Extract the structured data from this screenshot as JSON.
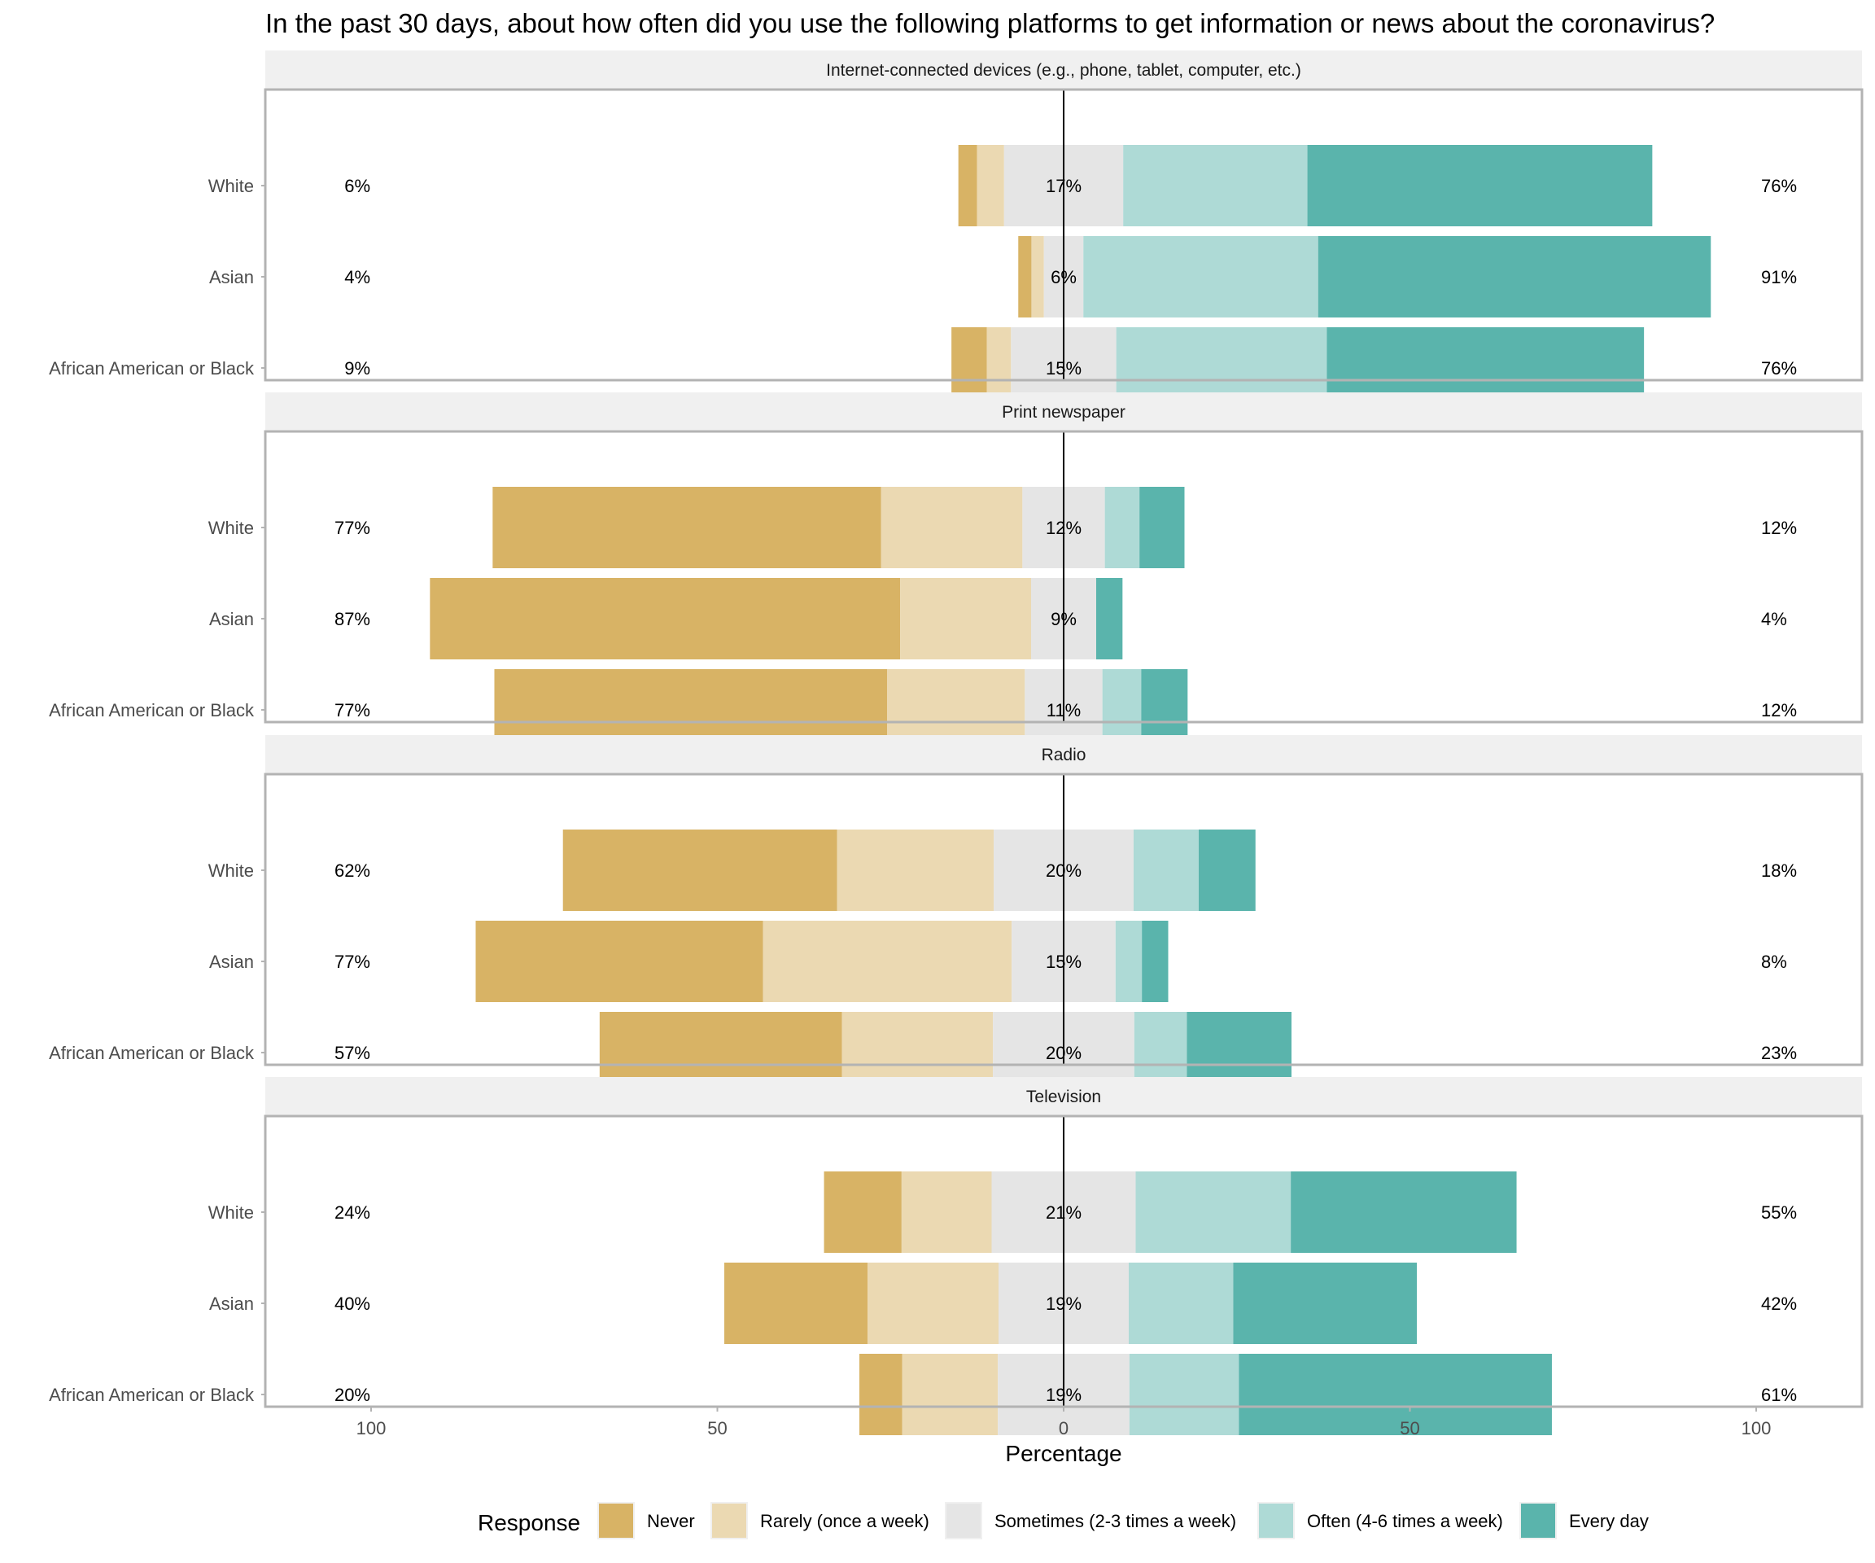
{
  "chart_data": {
    "type": "bar",
    "subtype": "diverging-stacked-horizontal",
    "title": "In the past 30 days, about how often did you use the following platforms to get information or news about the coronavirus?",
    "xlabel": "Percentage",
    "ylabel": "",
    "xlim": [
      -100,
      100
    ],
    "x_ticks": [
      -100,
      -50,
      0,
      50,
      100
    ],
    "x_tick_labels": [
      "100",
      "50",
      "0",
      "50",
      "100"
    ],
    "grid": true,
    "legend": {
      "title": "Response",
      "placement": "bottom",
      "entries": [
        {
          "name": "Never",
          "color": "#D8B365"
        },
        {
          "name": "Rarely (once a week)",
          "color": "#EBD9B2"
        },
        {
          "name": "Sometimes (2-3 times a week)",
          "color": "#E5E5E5"
        },
        {
          "name": "Often (4-6 times a week)",
          "color": "#AEDAD6"
        },
        {
          "name": "Every day",
          "color": "#5AB4AC"
        }
      ]
    },
    "categories": [
      "White",
      "Asian",
      "African American or Black"
    ],
    "facets": [
      {
        "label": "Internet-connected devices (e.g., phone, tablet, computer, etc.)",
        "rows": [
          {
            "group": "White",
            "values": [
              2.7,
              3.9,
              17.2,
              26.6,
              49.8
            ],
            "low_label": "6%",
            "mid_label": "17%",
            "high_label": "76%"
          },
          {
            "group": "Asian",
            "values": [
              1.9,
              1.8,
              5.7,
              33.9,
              56.7
            ],
            "low_label": "4%",
            "mid_label": "6%",
            "high_label": "91%"
          },
          {
            "group": "African American or Black",
            "values": [
              5.1,
              3.5,
              15.2,
              30.4,
              45.8
            ],
            "low_label": "9%",
            "mid_label": "15%",
            "high_label": "76%"
          }
        ]
      },
      {
        "label": "Print newspaper",
        "rows": [
          {
            "group": "White",
            "values": [
              56.1,
              20.4,
              11.9,
              5.0,
              6.5
            ],
            "low_label": "77%",
            "mid_label": "12%",
            "high_label": "12%"
          },
          {
            "group": "Asian",
            "values": [
              67.9,
              18.9,
              9.4,
              0.0,
              3.8
            ],
            "low_label": "87%",
            "mid_label": "9%",
            "high_label": "4%"
          },
          {
            "group": "African American or Black",
            "values": [
              56.7,
              19.9,
              11.2,
              5.6,
              6.7
            ],
            "low_label": "77%",
            "mid_label": "11%",
            "high_label": "12%"
          }
        ]
      },
      {
        "label": "Radio",
        "rows": [
          {
            "group": "White",
            "values": [
              39.6,
              22.6,
              20.2,
              9.4,
              8.2
            ],
            "low_label": "62%",
            "mid_label": "20%",
            "high_label": "18%"
          },
          {
            "group": "Asian",
            "values": [
              41.5,
              35.9,
              15.0,
              3.8,
              3.8
            ],
            "low_label": "77%",
            "mid_label": "15%",
            "high_label": "8%"
          },
          {
            "group": "African American or Black",
            "values": [
              35.0,
              21.8,
              20.4,
              7.6,
              15.1
            ],
            "low_label": "57%",
            "mid_label": "20%",
            "high_label": "23%"
          }
        ]
      },
      {
        "label": "Television",
        "rows": [
          {
            "group": "White",
            "values": [
              11.2,
              13.0,
              20.8,
              22.4,
              32.6
            ],
            "low_label": "24%",
            "mid_label": "21%",
            "high_label": "55%"
          },
          {
            "group": "Asian",
            "values": [
              20.7,
              18.9,
              18.8,
              15.1,
              26.5
            ],
            "low_label": "40%",
            "mid_label": "19%",
            "high_label": "42%"
          },
          {
            "group": "African American or Black",
            "values": [
              6.2,
              13.8,
              19.0,
              15.8,
              45.2
            ],
            "low_label": "20%",
            "mid_label": "19%",
            "high_label": "61%"
          }
        ]
      }
    ]
  }
}
